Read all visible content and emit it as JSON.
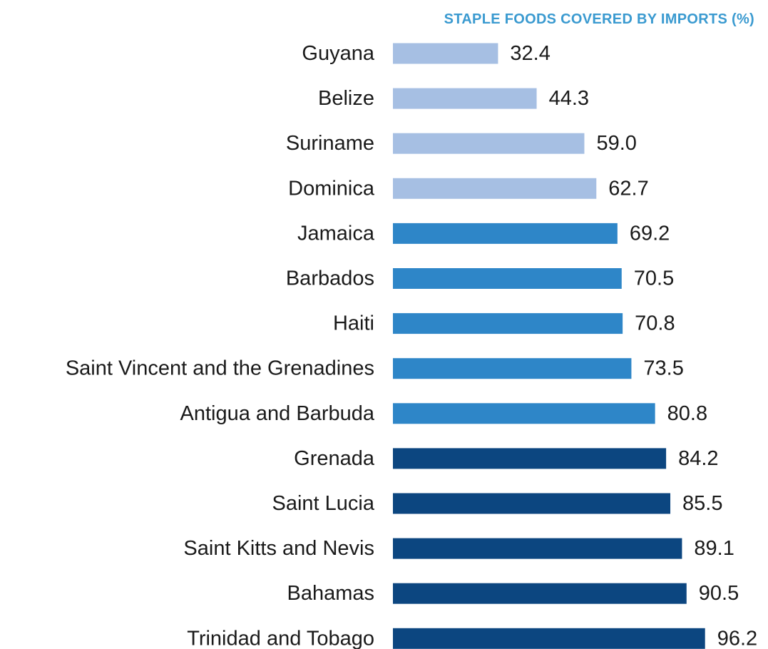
{
  "chart_data": {
    "type": "bar",
    "orientation": "horizontal",
    "title": "STAPLE FOODS COVERED BY IMPORTS (%)",
    "categories": [
      "Guyana",
      "Belize",
      "Suriname",
      "Dominica",
      "Jamaica",
      "Barbados",
      "Haiti",
      "Saint Vincent and the Grenadines",
      "Antigua and Barbuda",
      "Grenada",
      "Saint Lucia",
      "Saint Kitts and Nevis",
      "Bahamas",
      "Trinidad and Tobago"
    ],
    "values": [
      32.4,
      44.3,
      59.0,
      62.7,
      69.2,
      70.5,
      70.8,
      73.5,
      80.8,
      84.2,
      85.5,
      89.1,
      90.5,
      96.2
    ],
    "value_labels": [
      "32.4",
      "44.3",
      "59.0",
      "62.7",
      "69.2",
      "70.5",
      "70.8",
      "73.5",
      "80.8",
      "84.2",
      "85.5",
      "89.1",
      "90.5",
      "96.2"
    ],
    "xlim": [
      0,
      100
    ],
    "grid": false,
    "legend": "none",
    "bar_color_groups": [
      {
        "range": [
          0,
          3
        ],
        "color": "#a6bfe3"
      },
      {
        "range": [
          4,
          8
        ],
        "color": "#2e86c8"
      },
      {
        "range": [
          9,
          13
        ],
        "color": "#0c4680"
      }
    ]
  },
  "colors": {
    "title": "#3a9ad0",
    "category_label": "#1a1a1a",
    "value_label": "#1a1a1a",
    "background": "#ffffff"
  }
}
